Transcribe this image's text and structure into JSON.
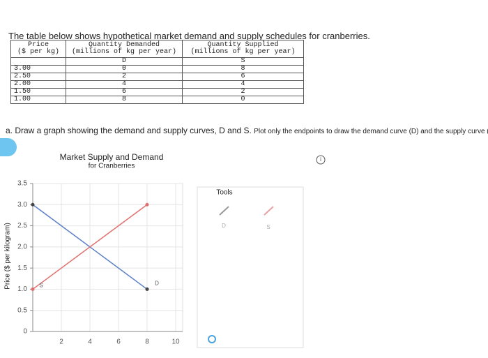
{
  "intro": "The table below shows hypothetical market demand and supply schedules for cranberries.",
  "table": {
    "headers": [
      [
        "Price",
        "($ per kg)"
      ],
      [
        "Quantity Demanded",
        "(millions of kg per year)"
      ],
      [
        "Quantity Supplied",
        "(millions of kg per year)"
      ]
    ],
    "subheaders": [
      "D",
      "S"
    ],
    "rows": [
      [
        "3.00",
        "0",
        "8"
      ],
      [
        "2.50",
        "2",
        "6"
      ],
      [
        "2.00",
        "4",
        "4"
      ],
      [
        "1.50",
        "6",
        "2"
      ],
      [
        "1.00",
        "8",
        "0"
      ]
    ]
  },
  "question": [
    "a. Draw a graph showing the demand and supply curves, D and S.",
    "Plot only the endpoints to draw the demand curve (D) and the supply curve ("
  ],
  "chart_data": {
    "type": "line",
    "title": "Market Supply and Demand",
    "subtitle": "for Cranberries",
    "ylabel": "Price ($ per kilogram)",
    "xlim": [
      0,
      10
    ],
    "ylim": [
      0,
      3.5
    ],
    "xticks": [
      2,
      4,
      6,
      8,
      10
    ],
    "yticks": [
      0,
      0.5,
      {
        "value": 1,
        "label": "1.0"
      },
      1.5,
      {
        "value": 2,
        "label": "2.0"
      },
      2.5,
      {
        "value": 3,
        "label": "3.0"
      },
      3.5
    ],
    "grid": true,
    "series": [
      {
        "name": "D",
        "color": "#5b7fc7",
        "x": [
          0,
          8
        ],
        "values": [
          3,
          1
        ]
      },
      {
        "name": "S",
        "color": "#e07070",
        "x": [
          0,
          8
        ],
        "values": [
          1,
          3
        ]
      }
    ]
  },
  "tools": {
    "title": "Tools",
    "items": [
      "D",
      "S"
    ]
  }
}
